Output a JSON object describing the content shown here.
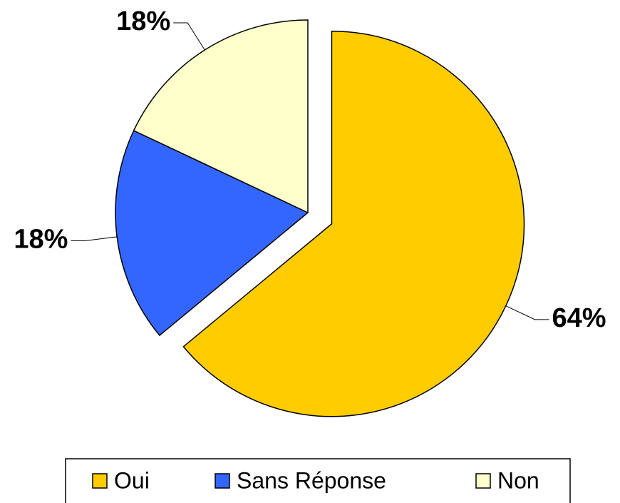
{
  "chart_data": {
    "type": "pie",
    "categories": [
      "Oui",
      "Sans Réponse",
      "Non"
    ],
    "values": [
      64,
      18,
      18
    ],
    "value_labels": [
      "64%",
      "18%",
      "18%"
    ],
    "colors": [
      "#FFCC00",
      "#3366FF",
      "#FFFFCC"
    ],
    "exploded": "Oui",
    "legend": "bottom"
  }
}
